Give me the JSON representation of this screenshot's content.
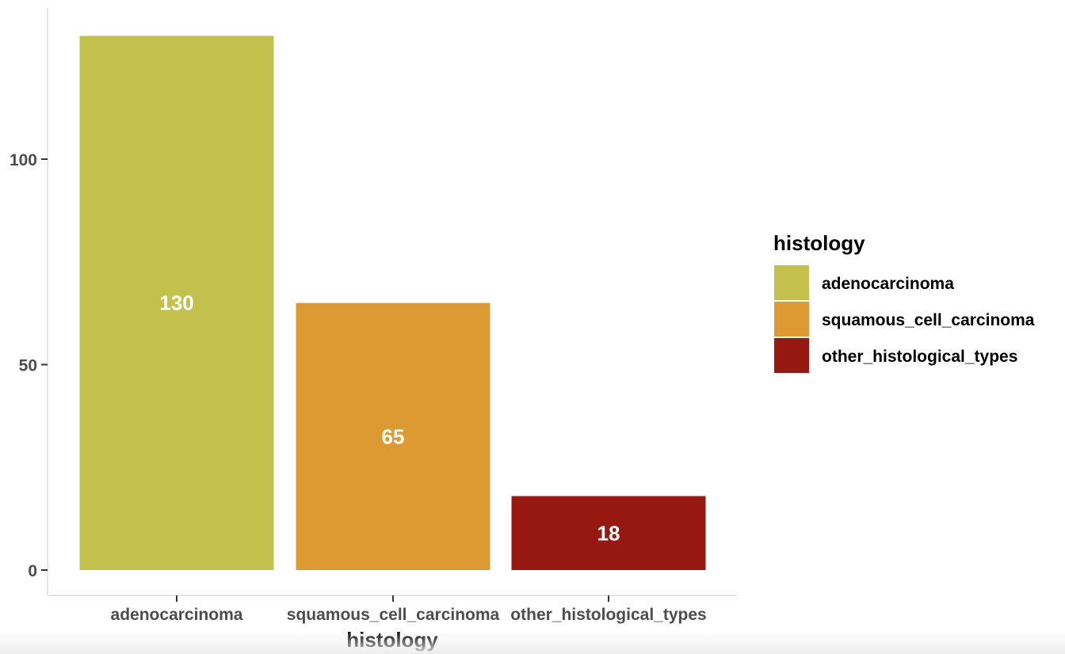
{
  "chart_data": {
    "type": "bar",
    "categories": [
      "adenocarcinoma",
      "squamous_cell_carcinoma",
      "other_histological_types"
    ],
    "values": [
      130,
      65,
      18
    ],
    "data_labels": [
      "130",
      "65",
      "18"
    ],
    "colors": [
      "#c3c04b",
      "#dd9a33",
      "#961810"
    ],
    "title": "",
    "xlabel": "histology",
    "ylabel": "",
    "ylim": [
      0,
      136.5
    ],
    "yticks": [
      0,
      50,
      100
    ],
    "ytick_labels": [
      "0",
      "50",
      "100"
    ],
    "grid": false,
    "legend": {
      "title": "histology",
      "placement": "right",
      "entries": [
        "adenocarcinoma",
        "squamous_cell_carcinoma",
        "other_histological_types"
      ]
    },
    "axis_color": "#e6e6e6",
    "tick_color": "#333333",
    "tick_label_color": "#4d4d4d"
  }
}
